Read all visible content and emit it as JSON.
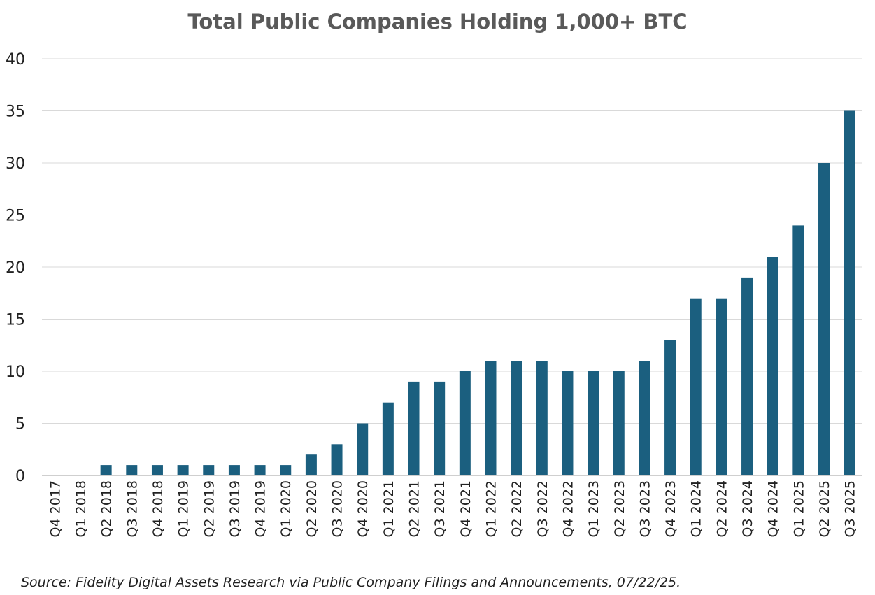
{
  "chart_data": {
    "type": "bar",
    "title": "Total Public Companies Holding 1,000+ BTC",
    "xlabel": "",
    "ylabel": "",
    "ylim": [
      0,
      40
    ],
    "yticks": [
      "0",
      "5",
      "10",
      "15",
      "20",
      "25",
      "30",
      "35",
      "40"
    ],
    "grid": true,
    "legend": "none",
    "bar_color": "#1B5F7F",
    "categories": [
      "Q4 2017",
      "Q1 2018",
      "Q2 2018",
      "Q3 2018",
      "Q4 2018",
      "Q1 2019",
      "Q2 2019",
      "Q3 2019",
      "Q4 2019",
      "Q1 2020",
      "Q2 2020",
      "Q3 2020",
      "Q4 2020",
      "Q1 2021",
      "Q2 2021",
      "Q3 2021",
      "Q4 2021",
      "Q1 2022",
      "Q2 2022",
      "Q3 2022",
      "Q4 2022",
      "Q1 2023",
      "Q2 2023",
      "Q3 2023",
      "Q4 2023",
      "Q1 2024",
      "Q2 2024",
      "Q3 2024",
      "Q4 2024",
      "Q1 2025",
      "Q2 2025",
      "Q3 2025"
    ],
    "values": [
      0,
      0,
      1,
      1,
      1,
      1,
      1,
      1,
      1,
      1,
      2,
      3,
      5,
      7,
      9,
      9,
      10,
      11,
      11,
      11,
      10,
      10,
      10,
      11,
      13,
      17,
      17,
      19,
      21,
      24,
      30,
      35
    ],
    "source": "Source: Fidelity Digital Assets Research via Public Company Filings and Announcements, 07/22/25."
  }
}
